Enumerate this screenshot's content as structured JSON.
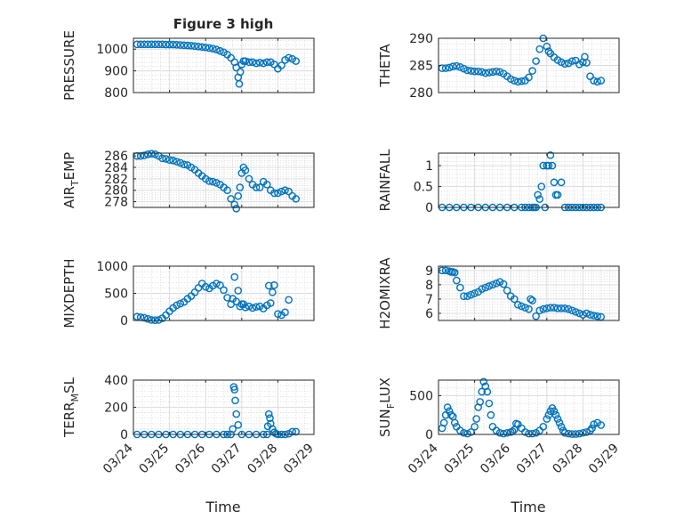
{
  "figure": {
    "title": "Figure 3 high",
    "xlabel": "Time",
    "x_ticks": [
      "03/24",
      "03/25",
      "03/26",
      "03/27",
      "03/28",
      "03/29"
    ],
    "marker_color": "#0072bd"
  },
  "chart_data": [
    {
      "type": "scatter",
      "ylabel": "PRESSURE",
      "ylim": [
        800,
        1050
      ],
      "yticks": [
        800,
        900,
        1000
      ],
      "grid": true,
      "x": [
        24.1,
        24.2,
        24.3,
        24.4,
        24.5,
        24.6,
        24.7,
        24.8,
        24.9,
        25.0,
        25.1,
        25.2,
        25.3,
        25.4,
        25.5,
        25.6,
        25.7,
        25.8,
        25.9,
        26.0,
        26.1,
        26.2,
        26.3,
        26.4,
        26.5,
        26.6,
        26.7,
        26.8,
        26.85,
        26.9,
        26.93,
        26.96,
        27.0,
        27.05,
        27.1,
        27.2,
        27.3,
        27.4,
        27.5,
        27.6,
        27.7,
        27.8,
        27.9,
        28.0,
        28.1,
        28.2,
        28.3,
        28.4,
        28.5
      ],
      "y": [
        1022,
        1022,
        1022,
        1022,
        1022,
        1022,
        1022,
        1022,
        1021,
        1021,
        1021,
        1020,
        1019,
        1018,
        1017,
        1016,
        1014,
        1012,
        1010,
        1008,
        1005,
        1002,
        998,
        992,
        985,
        975,
        960,
        940,
        915,
        870,
        840,
        895,
        930,
        945,
        945,
        940,
        940,
        935,
        938,
        935,
        940,
        940,
        930,
        910,
        925,
        950,
        960,
        955,
        945
      ]
    },
    {
      "type": "scatter",
      "ylabel": "THETA",
      "ylim": [
        280,
        290
      ],
      "yticks": [
        280,
        285,
        290
      ],
      "grid": true,
      "x": [
        24.1,
        24.2,
        24.3,
        24.4,
        24.5,
        24.6,
        24.7,
        24.8,
        24.9,
        25.0,
        25.1,
        25.2,
        25.3,
        25.4,
        25.5,
        25.6,
        25.7,
        25.8,
        25.9,
        26.0,
        26.1,
        26.2,
        26.3,
        26.4,
        26.5,
        26.6,
        26.7,
        26.8,
        26.9,
        27.0,
        27.05,
        27.1,
        27.2,
        27.3,
        27.4,
        27.5,
        27.6,
        27.7,
        27.8,
        27.9,
        28.0,
        28.05,
        28.1,
        28.2,
        28.3,
        28.4,
        28.5
      ],
      "y": [
        284.5,
        284.5,
        284.6,
        284.8,
        284.9,
        284.7,
        284.4,
        284.1,
        284.0,
        283.9,
        283.9,
        283.8,
        283.6,
        283.7,
        283.8,
        283.9,
        283.8,
        283.5,
        283.0,
        282.5,
        282.2,
        282.0,
        282.1,
        282.2,
        282.8,
        284.0,
        285.8,
        288.0,
        290.0,
        288.5,
        287.6,
        287.2,
        286.5,
        286.0,
        285.6,
        285.3,
        285.4,
        285.8,
        285.9,
        285.2,
        285.6,
        286.6,
        285.5,
        283.0,
        282.2,
        282.0,
        282.2
      ]
    },
    {
      "type": "scatter",
      "ylabel": "AIR_TEMP",
      "ylim": [
        277,
        286.5
      ],
      "yticks": [
        278,
        280,
        282,
        284,
        286
      ],
      "grid": true,
      "x": [
        24.1,
        24.2,
        24.3,
        24.4,
        24.5,
        24.6,
        24.7,
        24.8,
        24.9,
        25.0,
        25.1,
        25.2,
        25.3,
        25.4,
        25.5,
        25.6,
        25.7,
        25.8,
        25.9,
        26.0,
        26.1,
        26.2,
        26.3,
        26.4,
        26.5,
        26.6,
        26.7,
        26.8,
        26.85,
        26.9,
        26.95,
        27.0,
        27.05,
        27.1,
        27.2,
        27.3,
        27.4,
        27.5,
        27.6,
        27.7,
        27.8,
        27.9,
        28.0,
        28.1,
        28.2,
        28.3,
        28.4,
        28.5
      ],
      "y": [
        286.0,
        286.0,
        286.1,
        286.3,
        286.4,
        286.3,
        286.0,
        285.6,
        285.5,
        285.3,
        285.2,
        285.0,
        284.8,
        284.5,
        284.4,
        284.0,
        283.6,
        283.0,
        282.5,
        282.0,
        281.6,
        281.5,
        281.3,
        281.0,
        280.5,
        280.0,
        278.5,
        277.5,
        276.8,
        279.0,
        280.5,
        283.0,
        284.0,
        283.5,
        282.0,
        281.0,
        280.5,
        280.5,
        281.5,
        281.0,
        280.0,
        279.5,
        279.5,
        279.8,
        280.0,
        279.8,
        279.0,
        278.5
      ]
    },
    {
      "type": "scatter",
      "ylabel": "RAINFALL",
      "ylim": [
        0,
        1.3
      ],
      "yticks": [
        0,
        0.5,
        1
      ],
      "grid": true,
      "x": [
        24.1,
        24.3,
        24.5,
        24.7,
        24.9,
        25.1,
        25.3,
        25.5,
        25.7,
        25.9,
        26.1,
        26.3,
        26.4,
        26.5,
        26.6,
        26.65,
        26.7,
        26.75,
        26.8,
        26.85,
        26.9,
        26.95,
        27.0,
        27.05,
        27.1,
        27.15,
        27.2,
        27.25,
        27.3,
        27.4,
        27.5,
        27.6,
        27.7,
        27.8,
        27.9,
        28.0,
        28.1,
        28.2,
        28.3,
        28.4,
        28.5
      ],
      "y": [
        0,
        0,
        0,
        0,
        0,
        0,
        0,
        0,
        0,
        0,
        0,
        0,
        0,
        0,
        0,
        0,
        0,
        0.3,
        0.2,
        0.5,
        1.0,
        0.0,
        1.0,
        1.0,
        1.25,
        1.0,
        0.6,
        0.3,
        0.3,
        0.6,
        0,
        0,
        0,
        0,
        0,
        0,
        0,
        0,
        0,
        0,
        0
      ]
    },
    {
      "type": "scatter",
      "ylabel": "MIXDEPTH",
      "ylim": [
        0,
        1000
      ],
      "yticks": [
        0,
        500,
        1000
      ],
      "grid": true,
      "x": [
        24.1,
        24.2,
        24.3,
        24.4,
        24.5,
        24.6,
        24.7,
        24.8,
        24.9,
        25.0,
        25.1,
        25.2,
        25.3,
        25.4,
        25.5,
        25.6,
        25.7,
        25.8,
        25.9,
        26.0,
        26.1,
        26.2,
        26.3,
        26.4,
        26.5,
        26.6,
        26.7,
        26.75,
        26.8,
        26.85,
        26.9,
        26.95,
        27.0,
        27.05,
        27.1,
        27.2,
        27.3,
        27.4,
        27.5,
        27.6,
        27.7,
        27.75,
        27.8,
        27.85,
        27.9,
        28.0,
        28.1,
        28.2,
        28.3
      ],
      "y": [
        70,
        60,
        50,
        30,
        10,
        5,
        10,
        40,
        100,
        170,
        230,
        280,
        310,
        340,
        400,
        450,
        520,
        600,
        680,
        620,
        590,
        640,
        680,
        650,
        560,
        420,
        300,
        400,
        800,
        350,
        550,
        260,
        300,
        300,
        240,
        260,
        230,
        250,
        260,
        220,
        280,
        640,
        320,
        520,
        650,
        120,
        100,
        150,
        380
      ]
    },
    {
      "type": "scatter",
      "ylabel": "H2OMIXRA",
      "ylim": [
        5.5,
        9.3
      ],
      "yticks": [
        6,
        7,
        8,
        9
      ],
      "grid": true,
      "x": [
        24.1,
        24.2,
        24.3,
        24.35,
        24.4,
        24.45,
        24.5,
        24.6,
        24.7,
        24.8,
        24.9,
        25.0,
        25.1,
        25.2,
        25.3,
        25.4,
        25.5,
        25.6,
        25.7,
        25.8,
        25.9,
        26.0,
        26.1,
        26.2,
        26.3,
        26.4,
        26.5,
        26.55,
        26.6,
        26.7,
        26.8,
        26.9,
        27.0,
        27.1,
        27.2,
        27.3,
        27.4,
        27.5,
        27.6,
        27.7,
        27.8,
        27.9,
        28.0,
        28.1,
        28.2,
        28.3,
        28.4,
        28.5
      ],
      "y": [
        9.0,
        9.0,
        8.95,
        8.9,
        8.9,
        8.85,
        8.3,
        7.8,
        7.2,
        7.2,
        7.3,
        7.4,
        7.5,
        7.7,
        7.8,
        7.9,
        8.0,
        8.1,
        8.2,
        8.05,
        7.6,
        7.2,
        7.0,
        6.6,
        6.5,
        6.4,
        6.3,
        7.0,
        6.9,
        5.8,
        6.2,
        6.3,
        6.35,
        6.4,
        6.4,
        6.35,
        6.35,
        6.35,
        6.3,
        6.2,
        6.1,
        6.0,
        5.9,
        6.0,
        5.9,
        5.85,
        5.8,
        5.75
      ]
    },
    {
      "type": "scatter",
      "ylabel": "TERR_MSL",
      "ylim": [
        0,
        400
      ],
      "yticks": [
        0,
        200,
        400
      ],
      "grid": true,
      "x": [
        24.1,
        24.3,
        24.5,
        24.7,
        24.9,
        25.1,
        25.3,
        25.5,
        25.7,
        25.9,
        26.1,
        26.3,
        26.5,
        26.6,
        26.7,
        26.75,
        26.78,
        26.8,
        26.82,
        26.85,
        26.9,
        27.0,
        27.2,
        27.4,
        27.6,
        27.7,
        27.72,
        27.75,
        27.78,
        27.8,
        27.85,
        27.9,
        27.95,
        28.0,
        28.1,
        28.2,
        28.3,
        28.4,
        28.5
      ],
      "y": [
        0,
        0,
        0,
        0,
        0,
        0,
        0,
        0,
        0,
        0,
        0,
        0,
        0,
        0,
        0,
        40,
        350,
        330,
        250,
        150,
        70,
        0,
        0,
        0,
        0,
        0,
        60,
        150,
        120,
        80,
        40,
        15,
        5,
        0,
        0,
        0,
        5,
        20,
        20
      ]
    },
    {
      "type": "scatter",
      "ylabel": "SUN_FLUX",
      "ylim": [
        0,
        700
      ],
      "yticks": [
        0,
        500
      ],
      "grid": true,
      "x": [
        24.1,
        24.15,
        24.2,
        24.25,
        24.3,
        24.35,
        24.4,
        24.45,
        24.5,
        24.6,
        24.7,
        24.8,
        24.9,
        25.0,
        25.05,
        25.1,
        25.15,
        25.2,
        25.25,
        25.3,
        25.35,
        25.4,
        25.45,
        25.5,
        25.6,
        25.7,
        25.8,
        25.9,
        26.0,
        26.05,
        26.1,
        26.15,
        26.2,
        26.3,
        26.4,
        26.5,
        26.6,
        26.7,
        26.8,
        26.9,
        27.0,
        27.05,
        27.1,
        27.15,
        27.2,
        27.25,
        27.3,
        27.35,
        27.4,
        27.45,
        27.5,
        27.6,
        27.7,
        27.8,
        27.9,
        28.0,
        28.1,
        28.2,
        28.25,
        28.3,
        28.4,
        28.5
      ],
      "y": [
        80,
        150,
        250,
        350,
        300,
        250,
        230,
        150,
        100,
        50,
        20,
        10,
        30,
        100,
        200,
        350,
        420,
        550,
        680,
        620,
        550,
        400,
        250,
        100,
        50,
        20,
        10,
        20,
        30,
        40,
        60,
        140,
        130,
        80,
        30,
        10,
        10,
        20,
        50,
        100,
        200,
        250,
        300,
        340,
        300,
        250,
        200,
        150,
        100,
        50,
        20,
        10,
        5,
        5,
        10,
        20,
        30,
        50,
        80,
        130,
        150,
        120
      ]
    }
  ]
}
